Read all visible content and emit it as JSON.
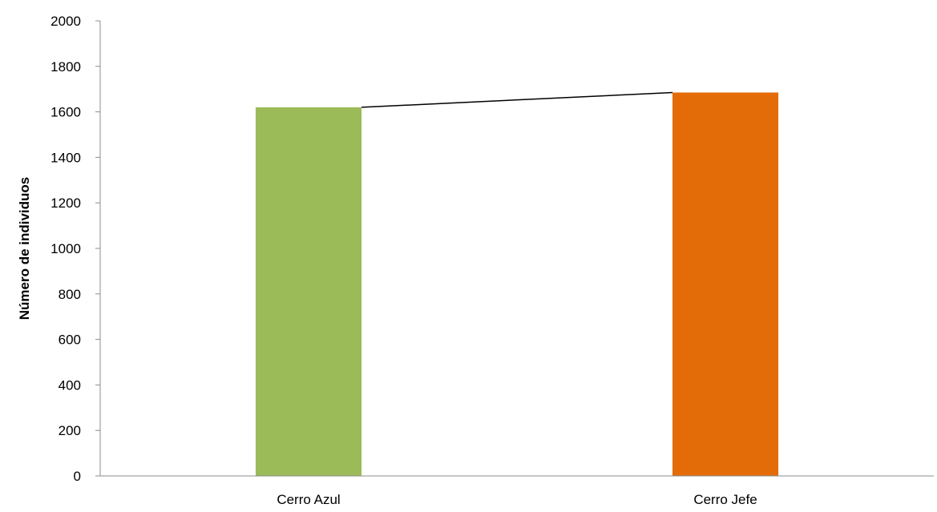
{
  "chart_data": {
    "type": "bar",
    "title": "",
    "xlabel": "",
    "ylabel": "Número de individuos",
    "categories": [
      "Cerro Azul",
      "Cerro Jefe"
    ],
    "values": [
      1620,
      1685
    ],
    "bar_colors": [
      "#9bbb59",
      "#e36c09"
    ],
    "connector_line_color": "#000000",
    "ylim": [
      0,
      2000
    ],
    "yticks": [
      0,
      200,
      400,
      600,
      800,
      1000,
      1200,
      1400,
      1600,
      1800,
      2000
    ],
    "grid": false,
    "legend": "none"
  }
}
